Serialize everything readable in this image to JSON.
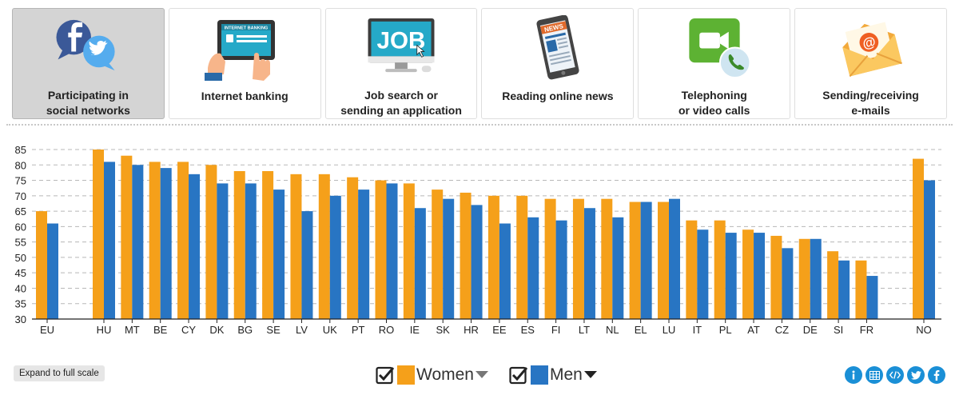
{
  "tabs": [
    {
      "id": "social",
      "label": "Participating in\nsocial networks",
      "active": true
    },
    {
      "id": "banking",
      "label": "Internet banking",
      "active": false,
      "icon_text": "INTERNET BANKING"
    },
    {
      "id": "job",
      "label": "Job search or\nsending an application",
      "active": false,
      "icon_text": "JOB"
    },
    {
      "id": "news",
      "label": "Reading online news",
      "active": false,
      "icon_text": "NEWS"
    },
    {
      "id": "calls",
      "label": "Telephoning\nor video calls",
      "active": false
    },
    {
      "id": "email",
      "label": "Sending/receiving\ne-mails",
      "active": false,
      "icon_text": "@"
    }
  ],
  "expand_label": "Expand to full scale",
  "colors": {
    "women": "#f5a01a",
    "men": "#2875c3",
    "accent": "#1a8fd6",
    "grid": "#b8b8b8"
  },
  "chart_data": {
    "type": "bar",
    "categories": [
      "EU",
      "HU",
      "MT",
      "BE",
      "CY",
      "DK",
      "BG",
      "SE",
      "LV",
      "UK",
      "PT",
      "RO",
      "IE",
      "SK",
      "HR",
      "EE",
      "ES",
      "FI",
      "LT",
      "NL",
      "EL",
      "LU",
      "IT",
      "PL",
      "AT",
      "CZ",
      "DE",
      "SI",
      "FR",
      "NO"
    ],
    "series": [
      {
        "name": "Women",
        "values": [
          65,
          85,
          83,
          81,
          81,
          80,
          78,
          78,
          77,
          77,
          76,
          75,
          74,
          72,
          71,
          70,
          70,
          69,
          69,
          69,
          68,
          68,
          62,
          62,
          59,
          57,
          56,
          52,
          49,
          82
        ]
      },
      {
        "name": "Men",
        "values": [
          61,
          81,
          80,
          79,
          77,
          74,
          74,
          72,
          65,
          70,
          72,
          74,
          66,
          69,
          67,
          61,
          63,
          62,
          66,
          63,
          68,
          69,
          59,
          58,
          58,
          53,
          56,
          49,
          44,
          75
        ]
      }
    ],
    "ylim": [
      30,
      85
    ],
    "yticks": [
      30,
      35,
      40,
      45,
      50,
      55,
      60,
      65,
      70,
      75,
      80,
      85
    ],
    "grid": true,
    "legend_position": "bottom"
  },
  "share_icons": [
    "info-icon",
    "table-icon",
    "embed-icon",
    "twitter-icon",
    "facebook-icon"
  ]
}
